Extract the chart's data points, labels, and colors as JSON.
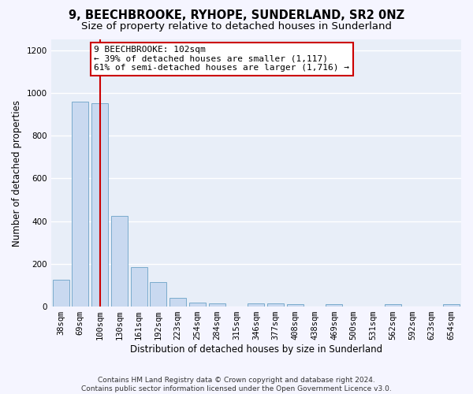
{
  "title": "9, BEECHBROOKE, RYHOPE, SUNDERLAND, SR2 0NZ",
  "subtitle": "Size of property relative to detached houses in Sunderland",
  "xlabel": "Distribution of detached houses by size in Sunderland",
  "ylabel": "Number of detached properties",
  "categories": [
    "38sqm",
    "69sqm",
    "100sqm",
    "130sqm",
    "161sqm",
    "192sqm",
    "223sqm",
    "254sqm",
    "284sqm",
    "315sqm",
    "346sqm",
    "377sqm",
    "408sqm",
    "438sqm",
    "469sqm",
    "500sqm",
    "531sqm",
    "562sqm",
    "592sqm",
    "623sqm",
    "654sqm"
  ],
  "values": [
    125,
    960,
    950,
    425,
    185,
    115,
    40,
    18,
    15,
    0,
    15,
    15,
    12,
    0,
    12,
    0,
    0,
    12,
    0,
    0,
    12
  ],
  "bar_color": "#c9d9f0",
  "bar_edge_color": "#7aabcc",
  "red_line_index": 2,
  "red_line_color": "#cc0000",
  "annotation_text": "9 BEECHBROOKE: 102sqm\n← 39% of detached houses are smaller (1,117)\n61% of semi-detached houses are larger (1,716) →",
  "annotation_box_facecolor": "#ffffff",
  "annotation_box_edgecolor": "#cc0000",
  "ylim": [
    0,
    1250
  ],
  "yticks": [
    0,
    200,
    400,
    600,
    800,
    1000,
    1200
  ],
  "plot_bgcolor": "#e8eef8",
  "fig_bgcolor": "#f5f5ff",
  "grid_color": "#ffffff",
  "footer": "Contains HM Land Registry data © Crown copyright and database right 2024.\nContains public sector information licensed under the Open Government Licence v3.0.",
  "title_fontsize": 10.5,
  "subtitle_fontsize": 9.5,
  "xlabel_fontsize": 8.5,
  "ylabel_fontsize": 8.5,
  "tick_fontsize": 7.5,
  "annotation_fontsize": 8,
  "footer_fontsize": 6.5
}
